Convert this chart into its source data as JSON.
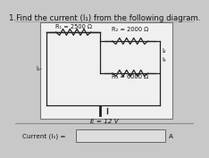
{
  "title": "1.Find the current (I₁) from the following diagram.",
  "R1_label": "R₁ = 2500 Ω",
  "R2_label": "R₂ = 2000 Ω",
  "R3_label": "R₃ = 6000 Ω",
  "E_label": "E = 12 V",
  "I1_label": "I₁",
  "I2_label": "I₂",
  "I3_label": "I₃",
  "current_label": "Current (I₁) =",
  "A_label": "A",
  "bg_color": "#c8c8c8",
  "box_color": "#e8e8e8",
  "white_color": "#f0f0f0",
  "text_color": "#111111",
  "wire_color": "#222222",
  "title_fontsize": 6.2,
  "label_fontsize": 5.2,
  "small_fontsize": 4.8
}
